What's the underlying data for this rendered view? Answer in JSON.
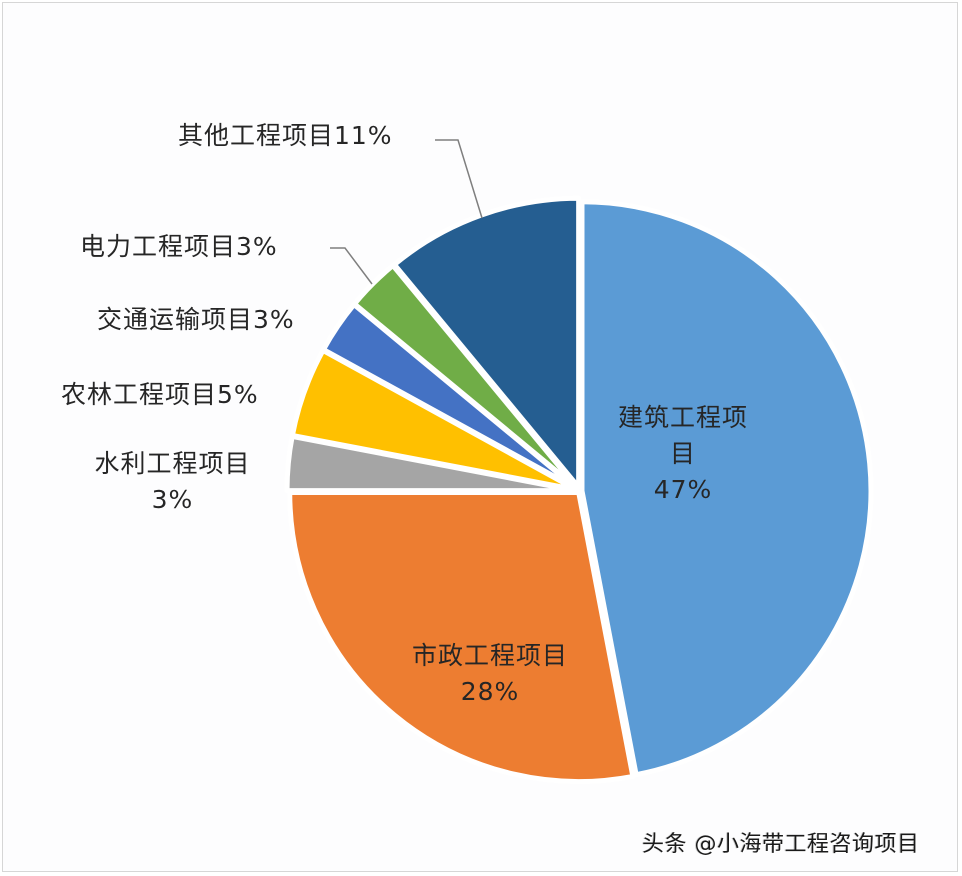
{
  "chart_data": {
    "type": "pie",
    "title": "",
    "start_angle_deg": 0,
    "direction": "clockwise",
    "slices": [
      {
        "key": "building",
        "label": "建筑工程项目",
        "value": 47,
        "display": "47%",
        "color": "#5B9BD5"
      },
      {
        "key": "municipal",
        "label": "市政工程项目",
        "value": 28,
        "display": "28%",
        "color": "#ED7D31"
      },
      {
        "key": "water",
        "label": "水利工程项目",
        "value": 3,
        "display": "3%",
        "color": "#A5A5A5"
      },
      {
        "key": "agri",
        "label": "农林工程项目",
        "value": 5,
        "display": "5%",
        "color": "#FFC000"
      },
      {
        "key": "transport",
        "label": "交通运输项目",
        "value": 3,
        "display": "3%",
        "color": "#4472C4"
      },
      {
        "key": "power",
        "label": "电力工程项目",
        "value": 3,
        "display": "3%",
        "color": "#70AD47"
      },
      {
        "key": "other",
        "label": "其他工程项目",
        "value": 11,
        "display": "11%",
        "color": "#255E91"
      }
    ],
    "legend": "none",
    "data_labels": "category name + percentage"
  },
  "labels": {
    "building_line1": "建筑工程项",
    "building_line2": "目",
    "building_pct": "47%",
    "municipal_line1": "市政工程项目",
    "municipal_pct": "28%",
    "water_line1": "水利工程项目",
    "water_pct": "3%",
    "agri": "农林工程项目5%",
    "transport": "交通运输项目3%",
    "power": "电力工程项目3%",
    "other": "其他工程项目11%"
  },
  "watermark": "头条 @小海带工程咨询项目"
}
